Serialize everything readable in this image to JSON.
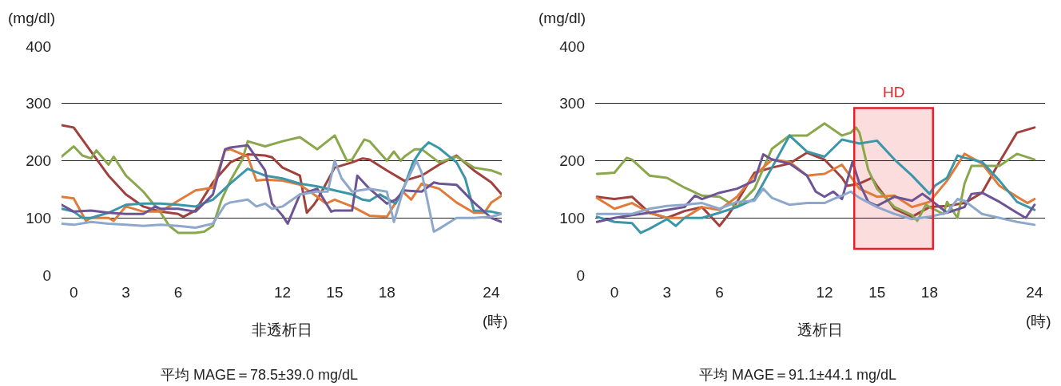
{
  "chart_data": [
    {
      "type": "line",
      "xlabel": "非透析日",
      "ylabel": "(mg/dl)",
      "annotations": [
        "(時)",
        "平均 MAGE＝78.5±39.0 mg/dL"
      ],
      "xlim": [
        -0.7,
        24.6
      ],
      "ylim": [
        0,
        400
      ],
      "yticks": [
        0,
        100,
        200,
        300,
        400
      ],
      "xticks": [
        0,
        3,
        6,
        12,
        15,
        18,
        24
      ],
      "grid": "y",
      "line_style": "solid",
      "series": [
        {
          "color": "#a0413d",
          "x": [
            -0.7,
            0,
            1,
            2,
            3,
            4,
            5,
            6,
            6.3,
            7,
            8,
            9,
            10,
            11,
            11.4,
            12,
            13,
            13.4,
            13.8,
            14,
            14.5,
            15,
            16,
            16.6,
            17,
            18,
            19,
            20,
            21,
            22,
            23,
            24,
            24.6
          ],
          "values": [
            262,
            258,
            216,
            174,
            141,
            120,
            111,
            107,
            102,
            113,
            162,
            197,
            211,
            209,
            206,
            188,
            174,
            109,
            123,
            132,
            160,
            188,
            197,
            204,
            202,
            183,
            165,
            174,
            193,
            209,
            183,
            162,
            141
          ]
        },
        {
          "color": "#8aa84b",
          "x": [
            -0.7,
            0,
            0.5,
            1,
            1.3,
            2,
            2.3,
            3,
            4,
            5,
            5.5,
            6,
            7,
            7.5,
            8,
            8.5,
            9,
            9.7,
            10,
            11,
            12,
            13,
            14,
            15,
            15.7,
            16,
            16.7,
            17,
            18,
            18.4,
            18.8,
            19,
            19.6,
            20,
            21,
            22,
            23,
            24,
            24.6
          ],
          "values": [
            207,
            225,
            209,
            204,
            218,
            193,
            207,
            174,
            146,
            109,
            86,
            74,
            74,
            76,
            86,
            132,
            165,
            202,
            234,
            225,
            234,
            241,
            220,
            244,
            200,
            202,
            237,
            234,
            200,
            216,
            200,
            207,
            220,
            220,
            197,
            207,
            188,
            183,
            176
          ]
        },
        {
          "color": "#e07b39",
          "x": [
            -0.7,
            0,
            0.7,
            1,
            2,
            2.3,
            3,
            4,
            5,
            6,
            7,
            8,
            8.7,
            9,
            10,
            10.5,
            11,
            12,
            13,
            14,
            14.5,
            15,
            16,
            17,
            18,
            18.9,
            19.4,
            20,
            21,
            22,
            23,
            23.6,
            24,
            24.6
          ],
          "values": [
            137,
            134,
            95,
            100,
            100,
            95,
            120,
            111,
            111,
            130,
            148,
            153,
            218,
            220,
            207,
            165,
            167,
            165,
            158,
            137,
            125,
            132,
            120,
            104,
            102,
            146,
            132,
            160,
            151,
            127,
            109,
            109,
            127,
            139
          ]
        },
        {
          "color": "#3b96a9",
          "x": [
            -0.7,
            0,
            0.5,
            1,
            2,
            3,
            4,
            5,
            6,
            7,
            8,
            9,
            10,
            11,
            12,
            13,
            14,
            15,
            16,
            16.6,
            17,
            17.6,
            18,
            18.5,
            19,
            19.5,
            20,
            20.4,
            21,
            22,
            22.5,
            23,
            24,
            24.6
          ],
          "values": [
            116,
            111,
            100,
            100,
            109,
            123,
            125,
            125,
            123,
            120,
            132,
            160,
            186,
            174,
            169,
            160,
            155,
            148,
            141,
            132,
            130,
            141,
            134,
            125,
            155,
            197,
            220,
            232,
            222,
            197,
            169,
            113,
            111,
            107
          ]
        },
        {
          "color": "#6d5494",
          "x": [
            -0.7,
            0,
            1,
            2,
            3,
            4,
            4.7,
            5,
            6,
            7,
            8,
            8.7,
            9,
            10,
            11,
            11.4,
            12,
            12.3,
            13,
            14,
            14.8,
            15,
            16,
            16.3,
            17,
            18,
            18.5,
            19,
            20,
            20.7,
            21,
            22,
            23,
            24,
            24.6
          ],
          "values": [
            123,
            111,
            113,
            109,
            107,
            107,
            120,
            116,
            116,
            111,
            141,
            220,
            223,
            227,
            183,
            125,
            104,
            90,
            141,
            151,
            111,
            113,
            113,
            174,
            151,
            125,
            132,
            148,
            146,
            162,
            160,
            158,
            127,
            100,
            93
          ]
        },
        {
          "color": "#8ea8cc",
          "x": [
            -0.7,
            0,
            1,
            2,
            3,
            4,
            5,
            6,
            7,
            8,
            8.7,
            9,
            10,
            10.5,
            11,
            11.4,
            12,
            13,
            14,
            14.6,
            15,
            15.4,
            16,
            17,
            18,
            18.4,
            19,
            19.7,
            20,
            20.7,
            21,
            22,
            23,
            24,
            24.6
          ],
          "values": [
            90,
            88,
            93,
            90,
            88,
            86,
            88,
            86,
            83,
            90,
            123,
            127,
            132,
            120,
            125,
            116,
            120,
            141,
            146,
            146,
            200,
            169,
            146,
            151,
            146,
            93,
            155,
            200,
            179,
            76,
            81,
            100,
            100,
            102,
            107
          ]
        }
      ]
    },
    {
      "type": "line",
      "xlabel": "透析日",
      "ylabel": "(mg/dl)",
      "annotations": [
        "(時)",
        "平均 MAGE＝91.1±44.1 mg/dL"
      ],
      "xlim": [
        -1.1,
        24.6
      ],
      "ylim": [
        0,
        400
      ],
      "yticks": [
        0,
        100,
        200,
        300,
        400
      ],
      "xticks": [
        0,
        3,
        6,
        12,
        15,
        18,
        24
      ],
      "grid": "y",
      "line_style": "solid",
      "bands": [
        {
          "axis": "x",
          "from": 13.7,
          "to": 18.2,
          "label": "HD",
          "color": "#e8202a"
        }
      ],
      "series": [
        {
          "color": "#a0413d",
          "x": [
            -1,
            0,
            1,
            2,
            3,
            4,
            5,
            6,
            6.5,
            7,
            8,
            9,
            10,
            11,
            12,
            13,
            13.3,
            14,
            14.7,
            15,
            16,
            17,
            18,
            19,
            20,
            21,
            22,
            23,
            24
          ],
          "values": [
            137,
            133,
            137,
            109,
            100,
            112,
            119,
            86,
            105,
            128,
            179,
            188,
            195,
            214,
            202,
            170,
            156,
            160,
            170,
            156,
            116,
            102,
            119,
            121,
            126,
            144,
            198,
            249,
            258
          ]
        },
        {
          "color": "#8aa84b",
          "x": [
            -1,
            0,
            0.7,
            1,
            2,
            3,
            4,
            5,
            6,
            7,
            8,
            9,
            10,
            11,
            12,
            13,
            13.5,
            13.8,
            14,
            14.5,
            15,
            16,
            17,
            17.3,
            17.8,
            18,
            18.8,
            19,
            19.6,
            20,
            20.4,
            21,
            22,
            23,
            24
          ],
          "values": [
            177,
            179,
            205,
            202,
            174,
            170,
            153,
            139,
            137,
            119,
            151,
            221,
            244,
            244,
            265,
            244,
            249,
            258,
            249,
            184,
            151,
            119,
            105,
            95,
            123,
            119,
            107,
            128,
            100,
            160,
            191,
            191,
            191,
            212,
            202
          ]
        },
        {
          "color": "#e07b39",
          "x": [
            -1,
            0,
            1,
            2,
            3,
            4,
            5,
            6,
            7,
            8,
            9,
            10,
            11,
            12,
            13,
            14,
            15,
            16,
            17,
            18,
            19,
            20,
            21,
            22,
            23,
            23.6,
            24
          ],
          "values": [
            135,
            116,
            126,
            109,
            100,
            100,
            119,
            114,
            137,
            174,
            202,
            198,
            174,
            177,
            193,
            151,
            137,
            139,
            119,
            128,
            165,
            212,
            195,
            156,
            137,
            126,
            133
          ]
        },
        {
          "color": "#3b96a9",
          "x": [
            -1,
            0,
            1,
            1.5,
            2,
            3,
            3.5,
            4,
            5,
            6,
            7,
            8,
            9,
            10,
            11,
            12,
            13,
            14,
            15,
            16,
            17,
            18,
            18.3,
            19,
            19.6,
            20,
            21,
            22,
            23,
            24
          ],
          "values": [
            102,
            93,
            91,
            74,
            81,
            98,
            86,
            100,
            100,
            109,
            119,
            133,
            188,
            244,
            216,
            207,
            237,
            230,
            235,
            202,
            174,
            142,
            156,
            170,
            209,
            205,
            198,
            165,
            128,
            114
          ]
        },
        {
          "color": "#6d5494",
          "x": [
            -1,
            0,
            1,
            2,
            3,
            4,
            4.6,
            5,
            6,
            7,
            8,
            8.5,
            9,
            10,
            11,
            11.5,
            12,
            12.5,
            13,
            13.6,
            14,
            14.5,
            15,
            16,
            17,
            17.6,
            18,
            19,
            20,
            20.4,
            21,
            22,
            23,
            23.5,
            24
          ],
          "values": [
            93,
            100,
            105,
            109,
            114,
            119,
            139,
            133,
            144,
            151,
            165,
            211,
            202,
            195,
            174,
            146,
            137,
            146,
            133,
            198,
            160,
            128,
            121,
            137,
            130,
            142,
            133,
            109,
            119,
            142,
            144,
            128,
            109,
            100,
            123
          ]
        },
        {
          "color": "#8ea8cc",
          "x": [
            -1,
            0,
            1,
            2,
            3,
            4,
            5,
            6,
            7,
            8,
            8.5,
            9,
            10,
            11,
            12,
            12.5,
            13,
            13.5,
            14,
            15,
            16,
            17,
            18,
            19,
            19.6,
            20,
            21,
            22,
            23,
            24
          ],
          "values": [
            107,
            107,
            107,
            116,
            121,
            123,
            126,
            116,
            128,
            130,
            151,
            135,
            123,
            126,
            126,
            133,
            139,
            146,
            135,
            119,
            107,
            98,
            102,
            109,
            133,
            130,
            107,
            100,
            93,
            88
          ]
        }
      ]
    }
  ]
}
